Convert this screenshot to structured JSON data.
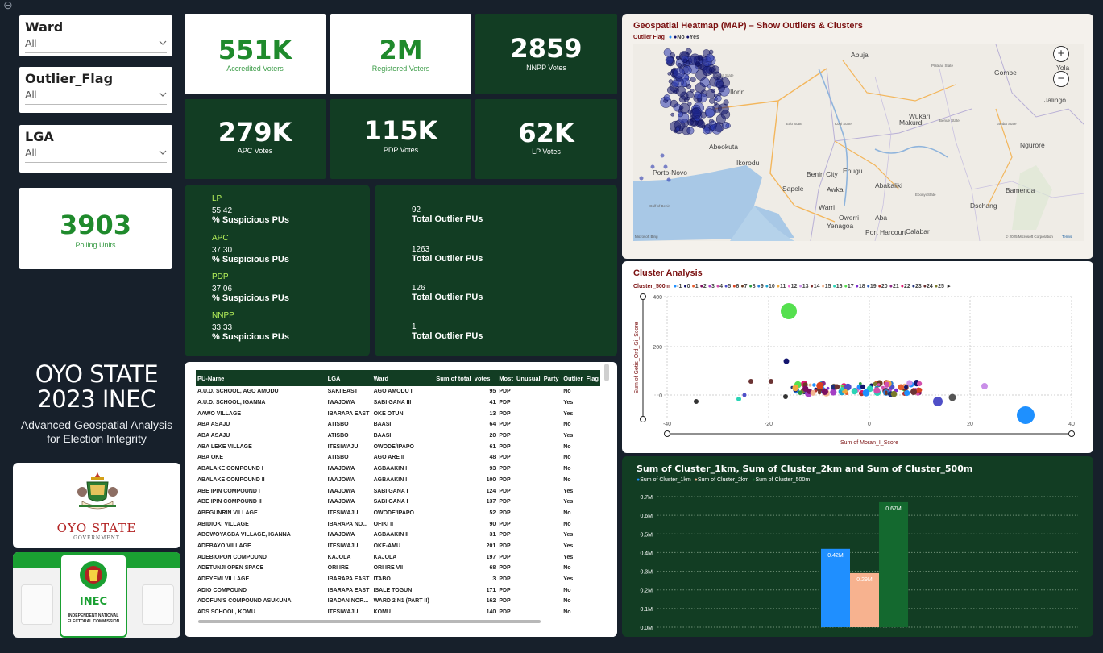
{
  "slicers": [
    {
      "title": "Ward",
      "value": "All"
    },
    {
      "title": "Outlier_Flag",
      "value": "All"
    },
    {
      "title": "LGA",
      "value": "All"
    }
  ],
  "kpis": {
    "accredited": {
      "value": "551K",
      "label": "Accredited Voters"
    },
    "registered": {
      "value": "2M",
      "label": "Registered Voters"
    },
    "nnpp": {
      "value": "2859",
      "label": "NNPP Votes"
    },
    "apc": {
      "value": "279K",
      "label": "APC Votes"
    },
    "pdp": {
      "value": "115K",
      "label": "PDP Votes"
    },
    "lp": {
      "value": "62K",
      "label": "LP Votes"
    },
    "polling": {
      "value": "3903",
      "label": "Polling Units"
    }
  },
  "suspicious": [
    {
      "party": "LP",
      "value": "55.42",
      "label": "% Suspicious PUs"
    },
    {
      "party": "APC",
      "value": "37.30",
      "label": "% Suspicious PUs"
    },
    {
      "party": "PDP",
      "value": "37.06",
      "label": "% Suspicious PUs"
    },
    {
      "party": "NNPP",
      "value": "33.33",
      "label": "% Suspicious PUs"
    }
  ],
  "outliers": [
    {
      "value": "92",
      "label": "Total Outlier PUs"
    },
    {
      "value": "1263",
      "label": "Total Outlier PUs"
    },
    {
      "value": "126",
      "label": "Total Outlier PUs"
    },
    {
      "value": "1",
      "label": "Total Outlier PUs"
    }
  ],
  "title_block": {
    "line1": "OYO STATE",
    "line2": "2023 INEC",
    "sub1": "Advanced Geospatial Analysis",
    "sub2": "for Election Integrity"
  },
  "logos": {
    "oyo_text": "OYO STATE",
    "oyo_sub": "GOVERNMENT",
    "inec_text": "INEC",
    "inec_sub1": "INDEPENDENT NATIONAL",
    "inec_sub2": "ELECTORAL COMMISSION"
  },
  "table": {
    "columns": [
      "PU-Name",
      "LGA",
      "Ward",
      "Sum of total_votes",
      "Most_Unusual_Party",
      "Outlier_Flag"
    ],
    "rows": [
      [
        "A.U.D. SCHOOL, AGO AMODU",
        "SAKI EAST",
        "AGO AMODU I",
        "95",
        "PDP",
        "No"
      ],
      [
        "A.U.D. SCHOOL, IGANNA",
        "IWAJOWA",
        "SABI GANA III",
        "41",
        "PDP",
        "Yes"
      ],
      [
        "AAWO VILLAGE",
        "IBARAPA EAST",
        "OKE OTUN",
        "13",
        "PDP",
        "Yes"
      ],
      [
        "ABA ASAJU",
        "ATISBO",
        "BAASI",
        "64",
        "PDP",
        "No"
      ],
      [
        "ABA ASAJU",
        "ATISBO",
        "BAASI",
        "20",
        "PDP",
        "Yes"
      ],
      [
        "ABA LEKE VILLAGE",
        "ITESIWAJU",
        "OWODE/IPAPO",
        "61",
        "PDP",
        "No"
      ],
      [
        "ABA OKE",
        "ATISBO",
        "AGO ARE II",
        "48",
        "PDP",
        "No"
      ],
      [
        "ABALAKE COMPOUND I",
        "IWAJOWA",
        "AGBAAKIN I",
        "93",
        "PDP",
        "No"
      ],
      [
        "ABALAKE COMPOUND II",
        "IWAJOWA",
        "AGBAAKIN I",
        "100",
        "PDP",
        "No"
      ],
      [
        "ABE IPIN COMPOUND I",
        "IWAJOWA",
        "SABI GANA I",
        "124",
        "PDP",
        "Yes"
      ],
      [
        "ABE IPIN COMPOUND II",
        "IWAJOWA",
        "SABI GANA I",
        "137",
        "PDP",
        "Yes"
      ],
      [
        "ABEGUNRIN VILLAGE",
        "ITESIWAJU",
        "OWODE/IPAPO",
        "52",
        "PDP",
        "No"
      ],
      [
        "ABIDIOKI VILLAGE",
        "IBARAPA NO...",
        "OFIKI II",
        "90",
        "PDP",
        "No"
      ],
      [
        "ABOWOYAGBA VILLAGE, IGANNA",
        "IWAJOWA",
        "AGBAAKIN II",
        "31",
        "PDP",
        "Yes"
      ],
      [
        "ADEBAYO VILLAGE",
        "ITESIWAJU",
        "OKE-AMU",
        "201",
        "PDP",
        "Yes"
      ],
      [
        "ADEBIOPON COMPOUND",
        "KAJOLA",
        "KAJOLA",
        "197",
        "PDP",
        "Yes"
      ],
      [
        "ADETUNJI OPEN SPACE",
        "ORI IRE",
        "ORI IRE VII",
        "68",
        "PDP",
        "No"
      ],
      [
        "ADEYEMI VILLAGE",
        "IBARAPA EAST",
        "ITABO",
        "3",
        "PDP",
        "Yes"
      ],
      [
        "ADIO COMPOUND",
        "IBARAPA EAST",
        "ISALE TOGUN",
        "171",
        "PDP",
        "No"
      ],
      [
        "ADOFUN'S COMPOUND ASUKUNA",
        "IBADAN NOR...",
        "WARD 2 N1 (PART II)",
        "162",
        "PDP",
        "No"
      ],
      [
        "ADS SCHOOL, KOMU",
        "ITESIWAJU",
        "KOMU",
        "140",
        "PDP",
        "No"
      ]
    ]
  },
  "map": {
    "title": "Geospatial Heatmap (MAP) – Show Outliers & Clusters",
    "legend_title": "Outlier Flag",
    "legend_items": [
      "No",
      "Yes"
    ],
    "places": [
      "Abuja",
      "Plateau State",
      "Kwara State",
      "Ilorin",
      "Makurdi",
      "Wukari",
      "Benin City",
      "Enugu",
      "Sapele",
      "Awka",
      "Abakaliki",
      "Warri",
      "Aba",
      "Calabar",
      "Bamenda",
      "Yola",
      "Gombe",
      "Jalingo",
      "Ngurore",
      "Owerri",
      "Dschang",
      "Abeokuta",
      "Ikorodu",
      "Porto-Novo",
      "Gulf of Benin",
      "Yenagoa",
      "Port Harcourt",
      "Kogi State",
      "Edo State",
      "Benue State",
      "Taraba State",
      "Ebonyi State"
    ],
    "attribution": "© 2025 Microsoft Corporation",
    "terms": "Terms",
    "bing": "Microsoft Bing",
    "zoom_in": "+",
    "zoom_out": "−"
  },
  "cluster": {
    "title": "Cluster Analysis",
    "legend_title": "Cluster_500m",
    "legend_items": [
      "-1",
      "0",
      "1",
      "2",
      "3",
      "4",
      "5",
      "6",
      "7",
      "8",
      "9",
      "10",
      "11",
      "12",
      "13",
      "14",
      "15",
      "16",
      "17",
      "18",
      "19",
      "20",
      "21",
      "22",
      "23",
      "24",
      "25"
    ],
    "legend_colors": [
      "#1e90ff",
      "#13156e",
      "#e35d2e",
      "#7a0f61",
      "#a43fc4",
      "#d14fad",
      "#4f4fc7",
      "#d9421f",
      "#6b3b22",
      "#2b9b3e",
      "#2a7fd8",
      "#1ca3cf",
      "#f0a93d",
      "#f26bd1",
      "#c98fe8",
      "#7a2b2b",
      "#f0b38d",
      "#2bd4b6",
      "#55e04f",
      "#7c2cd1",
      "#2a5ab8",
      "#b5312d",
      "#8a2b86",
      "#e0166f",
      "#1d2f7a",
      "#6b3333",
      "#7a7a2b"
    ],
    "xlabel": "Sum of Moran_I_Score",
    "ylabel": "Sum of Getis_Ord_Gi_Score",
    "xticks": [
      "-40",
      "-20",
      "0",
      "20",
      "40"
    ],
    "yticks": [
      "400",
      "200",
      "0"
    ]
  },
  "chart_data": {
    "type": "bar",
    "title": "Sum of Cluster_1km, Sum of Cluster_2km and Sum of Cluster_500m",
    "series": [
      {
        "name": "Sum of Cluster_1km",
        "values": [
          0.42
        ],
        "color": "#1f8fff",
        "label": "0.42M"
      },
      {
        "name": "Sum of Cluster_2km",
        "values": [
          0.29
        ],
        "color": "#f7b28f",
        "label": "0.29M"
      },
      {
        "name": "Sum of Cluster_500m",
        "values": [
          0.67
        ],
        "color": "#14692f",
        "label": "0.67M"
      }
    ],
    "ylim": [
      0,
      0.7
    ],
    "yticks": [
      "0.7M",
      "0.6M",
      "0.5M",
      "0.4M",
      "0.3M",
      "0.2M",
      "0.1M",
      "0.0M"
    ]
  }
}
